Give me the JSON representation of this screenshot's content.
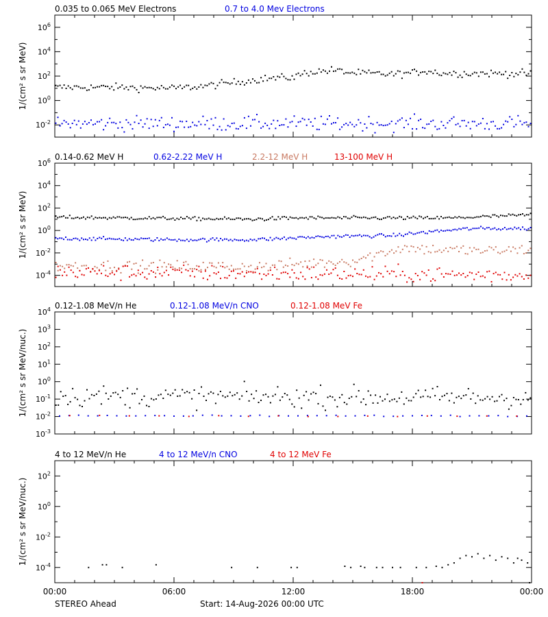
{
  "footer": {
    "spacecraft": "STEREO Ahead",
    "start": "Start: 14-Aug-2026 00:00 UTC"
  },
  "chart_data": [
    {
      "type": "scatter",
      "id": "electrons",
      "ylabel": "1/(cm² s sr MeV)",
      "yscale": "log",
      "ylim_exp": [
        -3,
        7
      ],
      "ytick_exps": [
        -2,
        0,
        2,
        4,
        6
      ],
      "xlabel": "",
      "x_ticks": [
        "00:00",
        "06:00",
        "12:00",
        "18:00",
        "00:00"
      ],
      "xlim_hours": [
        0,
        24
      ],
      "series": [
        {
          "name": "0.035 to 0.065 MeV Electrons",
          "color": "#000000",
          "profile": [
            [
              0,
              12
            ],
            [
              3,
              12
            ],
            [
              6,
              10
            ],
            [
              7.5,
              15
            ],
            [
              9,
              30
            ],
            [
              10.5,
              60
            ],
            [
              12,
              80
            ],
            [
              12.7,
              200
            ],
            [
              14,
              300
            ],
            [
              15,
              180
            ],
            [
              17,
              140
            ],
            [
              18,
              180
            ],
            [
              18.7,
              280
            ],
            [
              19.5,
              170
            ],
            [
              24,
              160
            ]
          ],
          "scatter": 0.15,
          "npoints": 230
        },
        {
          "name": "0.7 to 4.0 Mev Electrons",
          "color": "#0000e0",
          "profile": [
            [
              0,
              0.013
            ],
            [
              24,
              0.013
            ]
          ],
          "scatter": 0.3,
          "npoints": 230
        }
      ]
    },
    {
      "type": "scatter",
      "id": "protons",
      "ylabel": "1/(cm² s sr MeV)",
      "yscale": "log",
      "ylim_exp": [
        -5,
        6
      ],
      "ytick_exps": [
        -4,
        -2,
        0,
        2,
        4,
        6
      ],
      "xlabel": "",
      "x_ticks": [
        "00:00",
        "06:00",
        "12:00",
        "18:00",
        "00:00"
      ],
      "xlim_hours": [
        0,
        24
      ],
      "series": [
        {
          "name": "0.14-0.62 MeV H",
          "color": "#000000",
          "profile": [
            [
              0,
              15
            ],
            [
              10,
              10
            ],
            [
              12,
              13
            ],
            [
              20,
              13
            ],
            [
              24,
              25
            ]
          ],
          "scatter": 0.08,
          "npoints": 240
        },
        {
          "name": "0.62-2.22 MeV H",
          "color": "#0000e0",
          "profile": [
            [
              0,
              0.2
            ],
            [
              6,
              0.15
            ],
            [
              10,
              0.15
            ],
            [
              14,
              0.3
            ],
            [
              17,
              0.35
            ],
            [
              19,
              0.8
            ],
            [
              21,
              1.5
            ],
            [
              24,
              1.5
            ]
          ],
          "scatter": 0.08,
          "npoints": 240
        },
        {
          "name": "2.2-12 MeV H",
          "color": "#c87860",
          "profile": [
            [
              0,
              0.0007
            ],
            [
              11,
              0.0006
            ],
            [
              12,
              0.001
            ],
            [
              15,
              0.002
            ],
            [
              16.5,
              0.01
            ],
            [
              17.5,
              0.03
            ],
            [
              19,
              0.02
            ],
            [
              22,
              0.015
            ],
            [
              24,
              0.02
            ]
          ],
          "scatter": 0.25,
          "npoints": 220
        },
        {
          "name": "13-100 MeV H",
          "color": "#e00000",
          "profile": [
            [
              0,
              0.0002
            ],
            [
              24,
              0.0001
            ]
          ],
          "scatter": 0.35,
          "npoints": 220
        }
      ]
    },
    {
      "type": "scatter",
      "id": "suprathermal",
      "ylabel": "1/(cm² s sr MeV/nuc.)",
      "yscale": "log",
      "ylim_exp": [
        -3,
        4
      ],
      "ytick_exps": [
        -3,
        -2,
        -1,
        0,
        1,
        2,
        3,
        4
      ],
      "xlabel": "",
      "x_ticks": [
        "00:00",
        "06:00",
        "12:00",
        "18:00",
        "00:00"
      ],
      "xlim_hours": [
        0,
        24
      ],
      "series": [
        {
          "name": "0.12-1.08 MeV/n He",
          "color": "#000000",
          "profile": [
            [
              0,
              0.15
            ],
            [
              24,
              0.12
            ]
          ],
          "scatter": 0.3,
          "npoints": 200
        },
        {
          "name": "0.12-1.08 MeV/n CNO",
          "color": "#0000e0",
          "profile": [
            [
              0,
              0.011
            ],
            [
              24,
              0.011
            ]
          ],
          "scatter": 0.02,
          "npoints": 50
        },
        {
          "name": "0.12-1.08 MeV Fe",
          "color": "#e00000",
          "profile": [
            [
              0,
              0.011
            ],
            [
              24,
              0.011
            ]
          ],
          "scatter": 0.02,
          "npoints": 16
        }
      ]
    },
    {
      "type": "scatter",
      "id": "energetic",
      "ylabel": "1/(cm² s sr MeV/nuc.)",
      "yscale": "log",
      "ylim_exp": [
        -5,
        3
      ],
      "ytick_exps": [
        -4,
        -2,
        0,
        2
      ],
      "xlabel": "",
      "x_ticks": [
        "00:00",
        "06:00",
        "12:00",
        "18:00",
        "00:00"
      ],
      "xlim_hours": [
        0,
        24
      ],
      "series": [
        {
          "name": "4 to 12 MeV/n He",
          "color": "#000000",
          "points": [
            [
              1.7,
              0.0001
            ],
            [
              2.4,
              0.00015
            ],
            [
              2.6,
              0.00015
            ],
            [
              3.4,
              0.0001
            ],
            [
              5.1,
              0.00015
            ],
            [
              8.9,
              0.0001
            ],
            [
              10.2,
              0.0001
            ],
            [
              11.9,
              0.0001
            ],
            [
              12.2,
              0.0001
            ],
            [
              14.6,
              0.00012
            ],
            [
              14.9,
              0.0001
            ],
            [
              15.4,
              0.00012
            ],
            [
              15.6,
              0.0001
            ],
            [
              16.2,
              0.0001
            ],
            [
              16.5,
              0.0001
            ],
            [
              17.0,
              0.0001
            ],
            [
              17.4,
              0.0001
            ],
            [
              18.2,
              0.0001
            ],
            [
              18.7,
              0.0001
            ],
            [
              19.2,
              0.00012
            ],
            [
              19.5,
              0.0001
            ],
            [
              19.8,
              0.00015
            ],
            [
              20.1,
              0.0002
            ],
            [
              20.4,
              0.0004
            ],
            [
              20.7,
              0.0006
            ],
            [
              21.0,
              0.0005
            ],
            [
              21.3,
              0.0008
            ],
            [
              21.6,
              0.0004
            ],
            [
              21.9,
              0.0006
            ],
            [
              22.2,
              0.0003
            ],
            [
              22.5,
              0.0005
            ],
            [
              22.8,
              0.0004
            ],
            [
              23.1,
              0.0002
            ],
            [
              23.3,
              0.0004
            ],
            [
              23.5,
              0.0003
            ],
            [
              23.8,
              0.0002
            ],
            [
              23.9,
              1e-05
            ]
          ]
        },
        {
          "name": "4 to 12 MeV/n CNO",
          "color": "#0000e0",
          "points": []
        },
        {
          "name": "4 to 12 MeV Fe",
          "color": "#e00000",
          "points": [
            [
              18.5,
              1e-05
            ]
          ]
        }
      ]
    }
  ]
}
